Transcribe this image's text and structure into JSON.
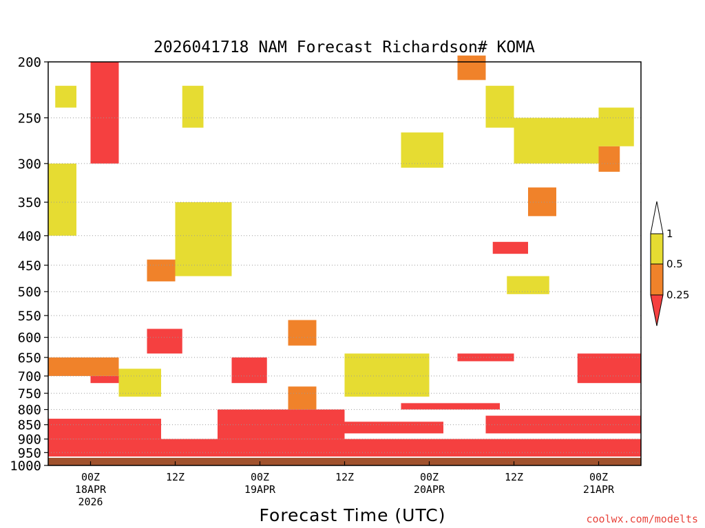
{
  "chart_data": {
    "type": "heatmap",
    "title": "2026041718 NAM Forecast Richardson# KOMA",
    "xlabel": "Forecast Time (UTC)",
    "ylabel": "",
    "credit": "coolwx.com/modelts",
    "y_axis": {
      "scale": "log-pressure",
      "range_hpa": [
        1000,
        200
      ],
      "ticks": [
        200,
        250,
        300,
        350,
        400,
        450,
        500,
        550,
        600,
        650,
        700,
        750,
        800,
        850,
        900,
        950,
        1000
      ]
    },
    "x_axis": {
      "range_hours": [
        -6,
        78
      ],
      "ticks": [
        {
          "hour": 0,
          "lines": [
            "00Z",
            "18APR",
            "2026"
          ]
        },
        {
          "hour": 12,
          "lines": [
            "12Z"
          ]
        },
        {
          "hour": 24,
          "lines": [
            "00Z",
            "19APR"
          ]
        },
        {
          "hour": 36,
          "lines": [
            "12Z"
          ]
        },
        {
          "hour": 48,
          "lines": [
            "00Z",
            "20APR"
          ]
        },
        {
          "hour": 60,
          "lines": [
            "12Z"
          ]
        },
        {
          "hour": 72,
          "lines": [
            "00Z",
            "21APR"
          ]
        }
      ]
    },
    "legend": {
      "placement": "right",
      "levels": [
        {
          "label": "1",
          "value": 1.0
        },
        {
          "label": "0.5",
          "value": 0.5
        },
        {
          "label": "0.25",
          "value": 0.25
        }
      ],
      "bins": [
        {
          "range": "<0.25",
          "color": "#f54040"
        },
        {
          "range": "0.25-0.5",
          "color": "#f0822a"
        },
        {
          "range": "0.5-1",
          "color": "#e6dc32"
        },
        {
          "range": ">1",
          "color": "#ffffff"
        }
      ]
    },
    "ground": {
      "color": "#a0522d",
      "pressure_hpa": 970
    },
    "colors": {
      "red": "#f54040",
      "orange": "#f0822a",
      "yellow": "#e6dc32"
    },
    "regions": [
      {
        "bin": "<0.25",
        "hours": [
          -6,
          78
        ],
        "p": [
          900,
          965
        ]
      },
      {
        "bin": "<0.25",
        "hours": [
          -6,
          10
        ],
        "p": [
          830,
          900
        ]
      },
      {
        "bin": "<0.25",
        "hours": [
          18,
          36
        ],
        "p": [
          800,
          900
        ]
      },
      {
        "bin": "<0.25",
        "hours": [
          20,
          25
        ],
        "p": [
          650,
          720
        ]
      },
      {
        "bin": "<0.25",
        "hours": [
          26,
          50
        ],
        "p": [
          840,
          880
        ]
      },
      {
        "bin": "<0.25",
        "hours": [
          56,
          78
        ],
        "p": [
          820,
          880
        ]
      },
      {
        "bin": "<0.25",
        "hours": [
          0,
          4
        ],
        "p": [
          700,
          720
        ]
      },
      {
        "bin": "<0.25",
        "hours": [
          8,
          13
        ],
        "p": [
          580,
          640
        ]
      },
      {
        "bin": "<0.25",
        "hours": [
          69,
          78
        ],
        "p": [
          640,
          720
        ]
      },
      {
        "bin": "<0.25",
        "hours": [
          44,
          58
        ],
        "p": [
          780,
          800
        ]
      },
      {
        "bin": "<0.25",
        "hours": [
          52,
          60
        ],
        "p": [
          640,
          660
        ]
      },
      {
        "bin": "<0.25",
        "hours": [
          0,
          4
        ],
        "p": [
          200,
          300
        ]
      },
      {
        "bin": "<0.25",
        "hours": [
          57,
          62
        ],
        "p": [
          410,
          430
        ]
      },
      {
        "bin": "0.25-0.5",
        "hours": [
          -6,
          4
        ],
        "p": [
          650,
          700
        ]
      },
      {
        "bin": "0.25-0.5",
        "hours": [
          8,
          12
        ],
        "p": [
          440,
          480
        ]
      },
      {
        "bin": "0.25-0.5",
        "hours": [
          28,
          32
        ],
        "p": [
          730,
          800
        ]
      },
      {
        "bin": "0.25-0.5",
        "hours": [
          52,
          56
        ],
        "p": [
          195,
          215
        ]
      },
      {
        "bin": "0.25-0.5",
        "hours": [
          62,
          66
        ],
        "p": [
          330,
          370
        ]
      },
      {
        "bin": "0.25-0.5",
        "hours": [
          72,
          75
        ],
        "p": [
          280,
          310
        ]
      },
      {
        "bin": "0.25-0.5",
        "hours": [
          28,
          32
        ],
        "p": [
          560,
          620
        ]
      },
      {
        "bin": "0.5-1",
        "hours": [
          -6,
          -2
        ],
        "p": [
          300,
          400
        ]
      },
      {
        "bin": "0.5-1",
        "hours": [
          12,
          20
        ],
        "p": [
          350,
          470
        ]
      },
      {
        "bin": "0.5-1",
        "hours": [
          44,
          50
        ],
        "p": [
          265,
          305
        ]
      },
      {
        "bin": "0.5-1",
        "hours": [
          13,
          16
        ],
        "p": [
          220,
          260
        ]
      },
      {
        "bin": "0.5-1",
        "hours": [
          56,
          60
        ],
        "p": [
          220,
          260
        ]
      },
      {
        "bin": "0.5-1",
        "hours": [
          60,
          72
        ],
        "p": [
          250,
          300
        ]
      },
      {
        "bin": "0.5-1",
        "hours": [
          72,
          77
        ],
        "p": [
          240,
          280
        ]
      },
      {
        "bin": "0.5-1",
        "hours": [
          59,
          65
        ],
        "p": [
          470,
          505
        ]
      },
      {
        "bin": "0.5-1",
        "hours": [
          36,
          48
        ],
        "p": [
          640,
          760
        ]
      },
      {
        "bin": "0.5-1",
        "hours": [
          4,
          10
        ],
        "p": [
          680,
          760
        ]
      },
      {
        "bin": "0.5-1",
        "hours": [
          -5,
          -2
        ],
        "p": [
          220,
          240
        ]
      }
    ]
  }
}
